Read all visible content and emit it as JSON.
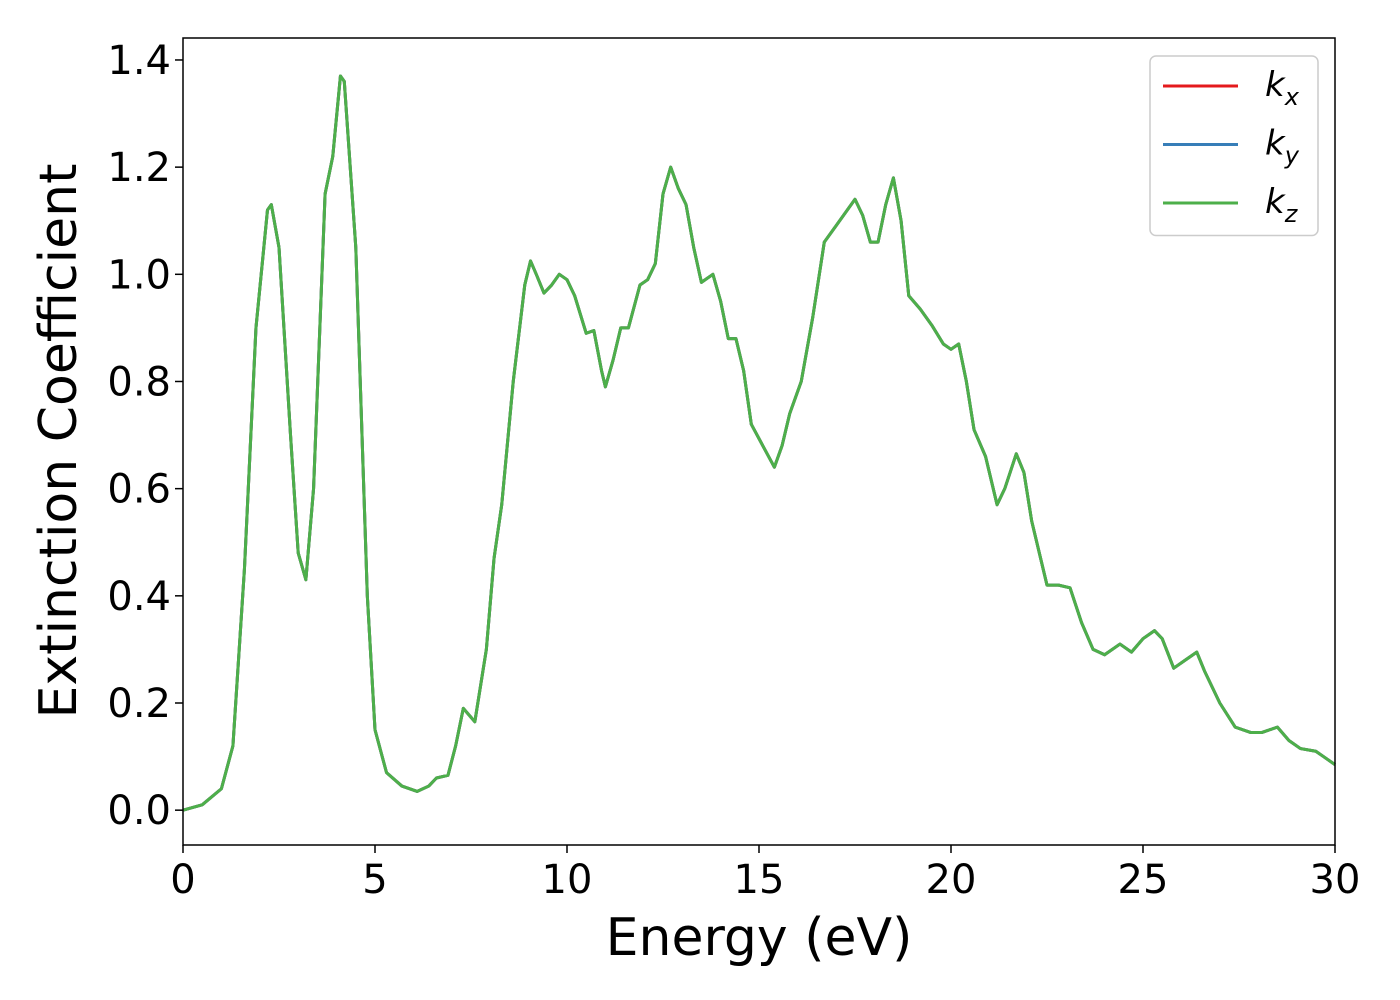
{
  "chart_data": {
    "type": "line",
    "x_label": "Energy (eV)",
    "y_label": "Extinction Coefficient",
    "xlim": [
      0,
      30
    ],
    "ylim": [
      -0.065,
      1.441
    ],
    "xticks": [
      0,
      5,
      10,
      15,
      20,
      25,
      30
    ],
    "yticks": [
      {
        "value": 0,
        "label": "0.0"
      },
      0.2,
      0.4,
      0.6,
      0.8,
      {
        "value": 1,
        "label": "1.0"
      },
      1.2,
      1.4
    ],
    "legend": "upper right",
    "grid": false,
    "x": [
      0,
      0.5,
      1.0,
      1.3,
      1.6,
      1.9,
      2.2,
      2.3,
      2.5,
      2.8,
      3.0,
      3.2,
      3.4,
      3.7,
      3.9,
      4.1,
      4.2,
      4.5,
      4.8,
      5.0,
      5.3,
      5.7,
      6.1,
      6.4,
      6.6,
      6.9,
      7.1,
      7.3,
      7.6,
      7.9,
      8.1,
      8.3,
      8.6,
      8.9,
      9.05,
      9.2,
      9.4,
      9.6,
      9.8,
      10.0,
      10.2,
      10.5,
      10.7,
      10.9,
      11.0,
      11.2,
      11.4,
      11.6,
      11.9,
      12.1,
      12.3,
      12.5,
      12.7,
      12.9,
      13.1,
      13.3,
      13.5,
      13.8,
      14.0,
      14.2,
      14.4,
      14.6,
      14.8,
      15.1,
      15.4,
      15.6,
      15.8,
      16.1,
      16.4,
      16.7,
      17.0,
      17.2,
      17.5,
      17.7,
      17.9,
      18.1,
      18.3,
      18.5,
      18.7,
      18.9,
      19.2,
      19.5,
      19.8,
      20.0,
      20.2,
      20.4,
      20.6,
      20.9,
      21.2,
      21.4,
      21.7,
      21.9,
      22.1,
      22.5,
      22.8,
      23.1,
      23.4,
      23.7,
      24.0,
      24.4,
      24.7,
      25.0,
      25.3,
      25.5,
      25.8,
      26.1,
      26.4,
      26.6,
      27.0,
      27.4,
      27.8,
      28.1,
      28.5,
      28.8,
      29.1,
      29.5,
      29.7,
      30.0
    ],
    "series": [
      {
        "name": "kx",
        "color": "#e41a1c",
        "values": [
          0,
          0.01,
          0.04,
          0.12,
          0.45,
          0.9,
          1.12,
          1.13,
          1.05,
          0.7,
          0.48,
          0.43,
          0.6,
          1.15,
          1.22,
          1.37,
          1.36,
          1.05,
          0.4,
          0.15,
          0.07,
          0.045,
          0.035,
          0.045,
          0.06,
          0.065,
          0.12,
          0.19,
          0.165,
          0.3,
          0.47,
          0.57,
          0.8,
          0.98,
          1.025,
          1.0,
          0.965,
          0.98,
          1.0,
          0.99,
          0.96,
          0.89,
          0.895,
          0.82,
          0.79,
          0.84,
          0.9,
          0.9,
          0.98,
          0.99,
          1.02,
          1.15,
          1.2,
          1.16,
          1.13,
          1.05,
          0.985,
          1.0,
          0.95,
          0.88,
          0.88,
          0.82,
          0.72,
          0.68,
          0.64,
          0.68,
          0.74,
          0.8,
          0.92,
          1.06,
          1.09,
          1.11,
          1.14,
          1.11,
          1.06,
          1.06,
          1.13,
          1.18,
          1.1,
          0.96,
          0.935,
          0.905,
          0.87,
          0.86,
          0.87,
          0.8,
          0.71,
          0.66,
          0.57,
          0.6,
          0.665,
          0.63,
          0.54,
          0.42,
          0.42,
          0.415,
          0.35,
          0.3,
          0.29,
          0.31,
          0.295,
          0.32,
          0.335,
          0.32,
          0.265,
          0.28,
          0.295,
          0.26,
          0.2,
          0.155,
          0.145,
          0.145,
          0.155,
          0.13,
          0.115,
          0.11,
          0.1,
          0.085
        ]
      },
      {
        "name": "ky",
        "color": "#377eb8",
        "values": [
          0,
          0.01,
          0.04,
          0.12,
          0.45,
          0.9,
          1.12,
          1.13,
          1.05,
          0.7,
          0.48,
          0.43,
          0.6,
          1.15,
          1.22,
          1.37,
          1.36,
          1.05,
          0.4,
          0.15,
          0.07,
          0.045,
          0.035,
          0.045,
          0.06,
          0.065,
          0.12,
          0.19,
          0.165,
          0.3,
          0.47,
          0.57,
          0.8,
          0.98,
          1.025,
          1.0,
          0.965,
          0.98,
          1.0,
          0.99,
          0.96,
          0.89,
          0.895,
          0.82,
          0.79,
          0.84,
          0.9,
          0.9,
          0.98,
          0.99,
          1.02,
          1.15,
          1.2,
          1.16,
          1.13,
          1.05,
          0.985,
          1.0,
          0.95,
          0.88,
          0.88,
          0.82,
          0.72,
          0.68,
          0.64,
          0.68,
          0.74,
          0.8,
          0.92,
          1.06,
          1.09,
          1.11,
          1.14,
          1.11,
          1.06,
          1.06,
          1.13,
          1.18,
          1.1,
          0.96,
          0.935,
          0.905,
          0.87,
          0.86,
          0.87,
          0.8,
          0.71,
          0.66,
          0.57,
          0.6,
          0.665,
          0.63,
          0.54,
          0.42,
          0.42,
          0.415,
          0.35,
          0.3,
          0.29,
          0.31,
          0.295,
          0.32,
          0.335,
          0.32,
          0.265,
          0.28,
          0.295,
          0.26,
          0.2,
          0.155,
          0.145,
          0.145,
          0.155,
          0.13,
          0.115,
          0.11,
          0.1,
          0.085
        ]
      },
      {
        "name": "kz",
        "color": "#4daf4a",
        "values": [
          0,
          0.01,
          0.04,
          0.12,
          0.45,
          0.9,
          1.12,
          1.13,
          1.05,
          0.7,
          0.48,
          0.43,
          0.6,
          1.15,
          1.22,
          1.37,
          1.36,
          1.05,
          0.4,
          0.15,
          0.07,
          0.045,
          0.035,
          0.045,
          0.06,
          0.065,
          0.12,
          0.19,
          0.165,
          0.3,
          0.47,
          0.57,
          0.8,
          0.98,
          1.025,
          1.0,
          0.965,
          0.98,
          1.0,
          0.99,
          0.96,
          0.89,
          0.895,
          0.82,
          0.79,
          0.84,
          0.9,
          0.9,
          0.98,
          0.99,
          1.02,
          1.15,
          1.2,
          1.16,
          1.13,
          1.05,
          0.985,
          1.0,
          0.95,
          0.88,
          0.88,
          0.82,
          0.72,
          0.68,
          0.64,
          0.68,
          0.74,
          0.8,
          0.92,
          1.06,
          1.09,
          1.11,
          1.14,
          1.11,
          1.06,
          1.06,
          1.13,
          1.18,
          1.1,
          0.96,
          0.935,
          0.905,
          0.87,
          0.86,
          0.87,
          0.8,
          0.71,
          0.66,
          0.57,
          0.6,
          0.665,
          0.63,
          0.54,
          0.42,
          0.42,
          0.415,
          0.35,
          0.3,
          0.29,
          0.31,
          0.295,
          0.32,
          0.335,
          0.32,
          0.265,
          0.28,
          0.295,
          0.26,
          0.2,
          0.155,
          0.145,
          0.145,
          0.155,
          0.13,
          0.115,
          0.11,
          0.1,
          0.085
        ]
      }
    ]
  }
}
